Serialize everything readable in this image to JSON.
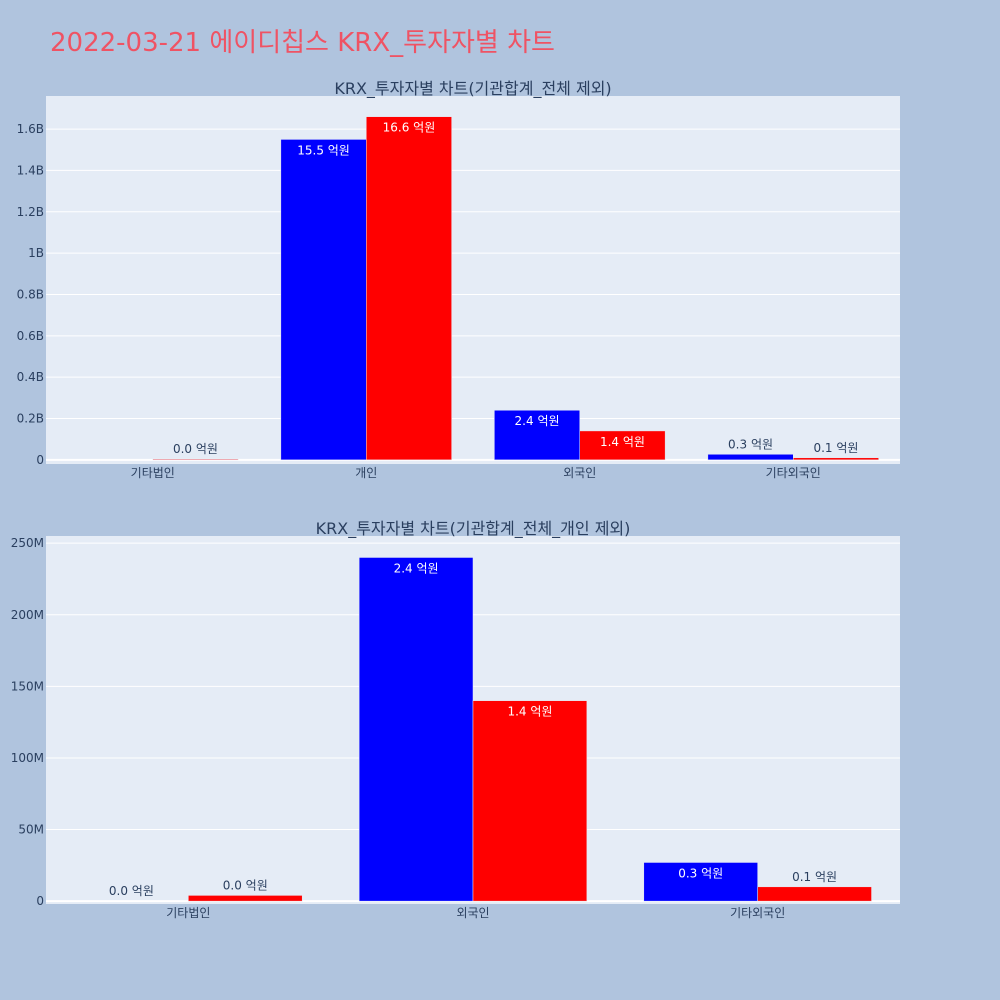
{
  "page": {
    "title": "2022-03-21 에이디칩스 KRX_투자자별 차트"
  },
  "colors": {
    "background": "#b0c4de",
    "plot": "#e5ecf6",
    "title": "#ef5364",
    "series1": "#0000ff",
    "series2": "#ff0000",
    "text": "#2a3f5f"
  },
  "chart_data": [
    {
      "type": "bar",
      "title": "KRX_투자자별 차트(기관합계_전체 제외)",
      "categories": [
        "기타법인",
        "개인",
        "외국인",
        "기타외국인"
      ],
      "series": [
        {
          "color": "#0000ff",
          "values": [
            0,
            1550000000,
            240000000,
            27000000
          ],
          "labels": [
            "",
            "15.5 억원",
            "2.4 억원",
            "0.3 억원"
          ]
        },
        {
          "color": "#ff0000",
          "values": [
            4000000,
            1660000000,
            140000000,
            10000000
          ],
          "labels": [
            "0.0 억원",
            "16.6 억원",
            "1.4 억원",
            "0.1 억원"
          ]
        }
      ],
      "ylim": [
        -20000000,
        1760000000
      ],
      "yticks": [
        0,
        200000000,
        400000000,
        600000000,
        800000000,
        1000000000,
        1200000000,
        1400000000,
        1600000000
      ],
      "ytick_labels": [
        "0",
        "0.2B",
        "0.4B",
        "0.6B",
        "0.8B",
        "1B",
        "1.2B",
        "1.4B",
        "1.6B"
      ],
      "xlabel": "",
      "ylabel": "",
      "grid": true
    },
    {
      "type": "bar",
      "title": "KRX_투자자별 차트(기관합계_전체_개인 제외)",
      "categories": [
        "기타법인",
        "외국인",
        "기타외국인"
      ],
      "series": [
        {
          "color": "#0000ff",
          "values": [
            0,
            240000000,
            27000000
          ],
          "labels": [
            "0.0 억원",
            "2.4 억원",
            "0.3 억원"
          ]
        },
        {
          "color": "#ff0000",
          "values": [
            4000000,
            140000000,
            10000000
          ],
          "labels": [
            "0.0 억원",
            "1.4 억원",
            "0.1 억원"
          ]
        }
      ],
      "ylim": [
        -2000000,
        255000000
      ],
      "yticks": [
        0,
        50000000,
        100000000,
        150000000,
        200000000,
        250000000
      ],
      "ytick_labels": [
        "0",
        "50M",
        "100M",
        "150M",
        "200M",
        "250M"
      ],
      "xlabel": "",
      "ylabel": "",
      "grid": true
    }
  ]
}
